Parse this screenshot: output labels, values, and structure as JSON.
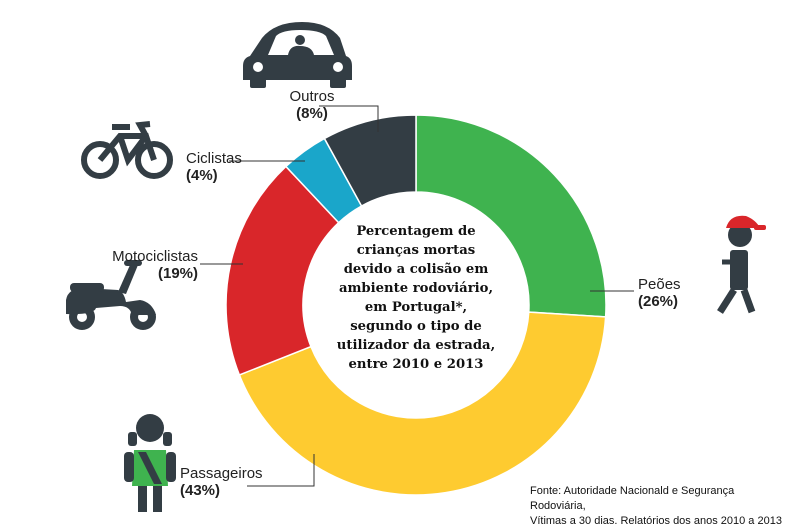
{
  "chart_data": {
    "type": "pie",
    "title_lines": [
      "Percentagem de",
      "crianças mortas",
      "devido a colisão em",
      "ambiente rodoviário,",
      "em Portugal*,",
      "segundo o tipo de",
      "utilizador da estrada,",
      "entre 2010 e 2013"
    ],
    "slices": [
      {
        "label": "Peões",
        "value": 26,
        "pct_label": "(26%)",
        "color": "#3fb34f"
      },
      {
        "label": "Passageiros",
        "value": 43,
        "pct_label": "(43%)",
        "color": "#fecb30"
      },
      {
        "label": "Motociclistas",
        "value": 19,
        "pct_label": "(19%)",
        "color": "#d9262a"
      },
      {
        "label": "Ciclistas",
        "value": 4,
        "pct_label": "(4%)",
        "color": "#1aa6ca"
      },
      {
        "label": "Outros",
        "value": 8,
        "pct_label": "(8%)",
        "color": "#333d44"
      }
    ],
    "source_lines": [
      "Fonte: Autoridade Nacionald e Segurança Rodoviária,",
      "Vítimas a 30 dias. Relatórios dos anos 2010 a 2013"
    ]
  },
  "icons": {
    "car": "car-icon",
    "bicycle": "bicycle-icon",
    "scooter": "scooter-icon",
    "pedestrian": "pedestrian-icon",
    "passenger": "passenger-child-icon"
  }
}
